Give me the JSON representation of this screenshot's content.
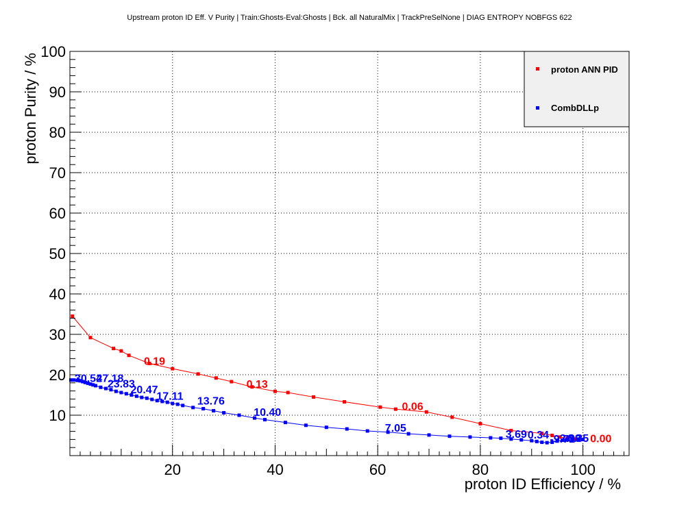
{
  "chart_data": {
    "type": "line",
    "title": "Upstream proton ID Eff. V Purity | Train:Ghosts-Eval:Ghosts | Bck. all NaturalMix | TrackPreSelNone | DIAG ENTROPY NOBFGS 622",
    "xlabel": "proton ID Efficiency / %",
    "ylabel": "proton Purity / %",
    "xlim": [
      0,
      109
    ],
    "ylim": [
      0,
      100
    ],
    "xticks": [
      20,
      40,
      60,
      80,
      100
    ],
    "yticks": [
      10,
      20,
      30,
      40,
      50,
      60,
      70,
      80,
      90,
      100
    ],
    "grid": true,
    "legend_position": "top-right",
    "series": [
      {
        "name": "proton ANN PID",
        "color": "#ff0000",
        "x": [
          0.5,
          4.0,
          8.5,
          10.0,
          11.5,
          15.5,
          20.0,
          25.0,
          28.5,
          31.5,
          35.5,
          40.0,
          42.5,
          47.5,
          53.5,
          60.5,
          63.5,
          69.5,
          74.5,
          80.0,
          86.0,
          92.0,
          94.0,
          95.5,
          97.0,
          98.5,
          100.0
        ],
        "y": [
          34.5,
          29.2,
          26.5,
          25.9,
          24.8,
          22.8,
          21.5,
          20.2,
          19.2,
          18.3,
          17.0,
          15.9,
          15.6,
          14.5,
          13.3,
          12.0,
          11.5,
          10.8,
          9.5,
          7.9,
          6.2,
          5.5,
          5.0,
          4.6,
          4.3,
          4.1,
          4.0
        ]
      },
      {
        "name": "CombDLLp",
        "color": "#0000ff",
        "x": [
          0.2,
          0.8,
          1.5,
          2.0,
          2.5,
          3.0,
          3.5,
          4.0,
          4.5,
          5.0,
          6.0,
          7.0,
          8.0,
          9.0,
          10.0,
          11.0,
          12.0,
          13.0,
          14.0,
          15.0,
          16.0,
          17.0,
          18.0,
          19.0,
          20.0,
          21.0,
          22.0,
          24.0,
          26.0,
          28.0,
          30.0,
          33.0,
          36.0,
          38.0,
          42.0,
          46.0,
          50.0,
          54.0,
          58.0,
          62.0,
          66.0,
          70.0,
          74.0,
          78.0,
          82.0,
          84.0,
          86.0,
          88.0,
          90.0,
          91.0,
          92.0,
          93.0,
          94.0,
          95.0,
          96.0,
          97.0,
          98.0,
          99.0,
          100.0
        ],
        "y": [
          18.7,
          18.7,
          18.6,
          18.5,
          18.3,
          18.1,
          17.9,
          17.7,
          17.5,
          17.3,
          16.9,
          16.6,
          16.3,
          15.9,
          15.6,
          15.3,
          15.0,
          14.7,
          14.4,
          14.2,
          13.9,
          13.6,
          13.4,
          13.2,
          12.9,
          12.7,
          12.4,
          11.9,
          11.6,
          11.1,
          10.6,
          10.0,
          9.3,
          8.9,
          8.2,
          7.5,
          7.0,
          6.6,
          6.1,
          5.8,
          5.4,
          5.1,
          4.8,
          4.6,
          4.4,
          4.3,
          4.1,
          3.9,
          3.7,
          3.5,
          3.3,
          3.2,
          3.3,
          3.6,
          3.8,
          3.9,
          4.0,
          4.1,
          4.0
        ]
      }
    ],
    "annotations": [
      {
        "text": "0.19",
        "series": "proton ANN PID",
        "x": 16.5,
        "y": 22.5
      },
      {
        "text": "0.13",
        "series": "proton ANN PID",
        "x": 36.5,
        "y": 16.8
      },
      {
        "text": "0.06",
        "series": "proton ANN PID",
        "x": 66.8,
        "y": 11.3
      },
      {
        "text": "0.00",
        "series": "proton ANN PID",
        "x": 103.5,
        "y": 3.3
      },
      {
        "text": "30.54",
        "series": "CombDLLp",
        "x": 3.6,
        "y": 18.2
      },
      {
        "text": "27.18",
        "series": "CombDLLp",
        "x": 7.8,
        "y": 18.2
      },
      {
        "text": "23.83",
        "series": "CombDLLp",
        "x": 10.0,
        "y": 16.9
      },
      {
        "text": "20.47",
        "series": "CombDLLp",
        "x": 14.5,
        "y": 15.4
      },
      {
        "text": "17.11",
        "series": "CombDLLp",
        "x": 19.5,
        "y": 13.8
      },
      {
        "text": "13.76",
        "series": "CombDLLp",
        "x": 27.5,
        "y": 12.6
      },
      {
        "text": "10.40",
        "series": "CombDLLp",
        "x": 38.5,
        "y": 9.8
      },
      {
        "text": "7.05",
        "series": "CombDLLp",
        "x": 63.5,
        "y": 5.9
      },
      {
        "text": "3.69",
        "series": "CombDLLp",
        "x": 87.0,
        "y": 4.4
      },
      {
        "text": "0.34",
        "series": "CombDLLp",
        "x": 91.3,
        "y": 4.2
      },
      {
        "text": "-2.99",
        "series": "CombDLLp",
        "x": 97.2,
        "y": 3.4
      },
      {
        "text": "-6.35",
        "series": "CombDLLp",
        "x": 98.7,
        "y": 3.4
      },
      {
        "text": "-9.71",
        "series": "CombDLLp",
        "x": 96.0,
        "y": 3.2
      }
    ]
  }
}
